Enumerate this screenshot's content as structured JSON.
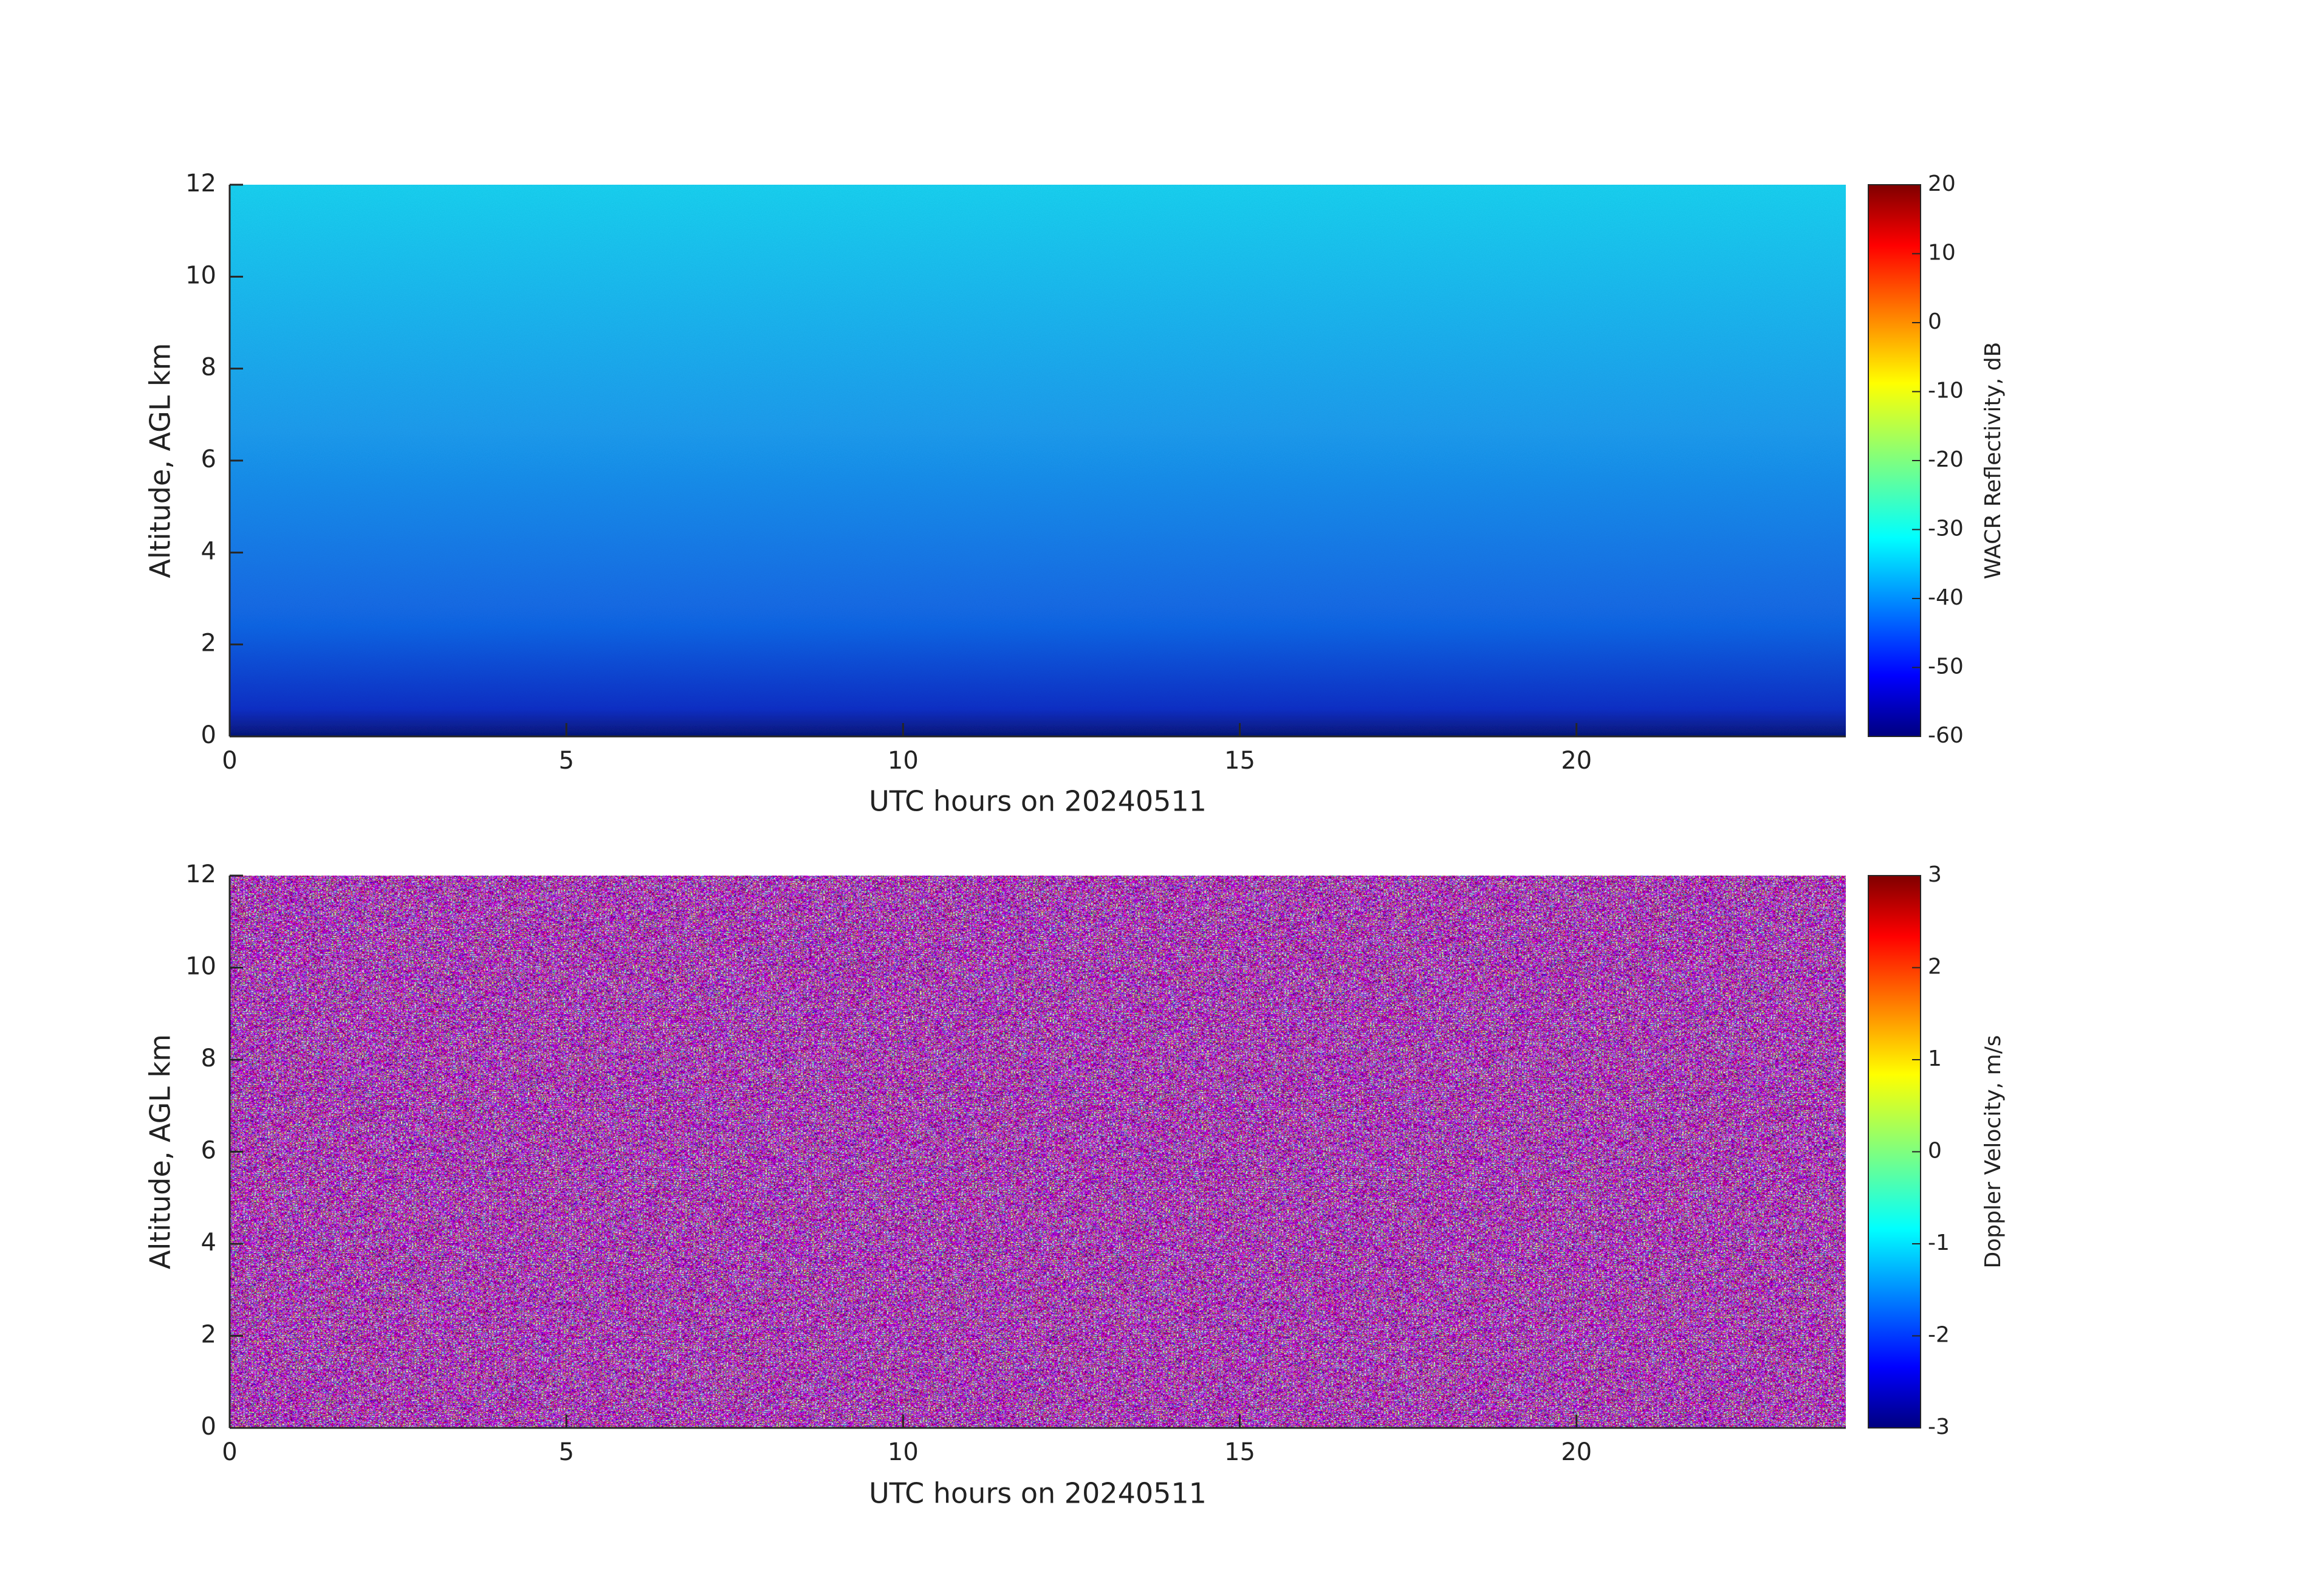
{
  "chart_data": [
    {
      "type": "heatmap",
      "xlabel": "UTC hours on 20240511",
      "ylabel": "Altitude, AGL km",
      "xlim": [
        0,
        24
      ],
      "ylim": [
        0,
        12
      ],
      "xticks": [
        0,
        5,
        10,
        15,
        20
      ],
      "yticks": [
        0,
        2,
        4,
        6,
        8,
        10,
        12
      ],
      "colorbar": {
        "label": "WACR Reflectivity, dB",
        "lim": [
          -60,
          20
        ],
        "ticks": [
          -60,
          -50,
          -40,
          -30,
          -20,
          -10,
          0,
          10,
          20
        ],
        "colormap": "jet"
      }
    },
    {
      "type": "heatmap",
      "xlabel": "UTC hours on 20240511",
      "ylabel": "Altitude, AGL km",
      "xlim": [
        0,
        24
      ],
      "ylim": [
        0,
        12
      ],
      "xticks": [
        0,
        5,
        10,
        15,
        20
      ],
      "yticks": [
        0,
        2,
        4,
        6,
        8,
        10,
        12
      ],
      "colorbar": {
        "label": "Doppler Velocity, m/s",
        "lim": [
          -3,
          3
        ],
        "ticks": [
          -3,
          -2,
          -1,
          0,
          1,
          2,
          3
        ],
        "colormap": "jet"
      }
    }
  ]
}
